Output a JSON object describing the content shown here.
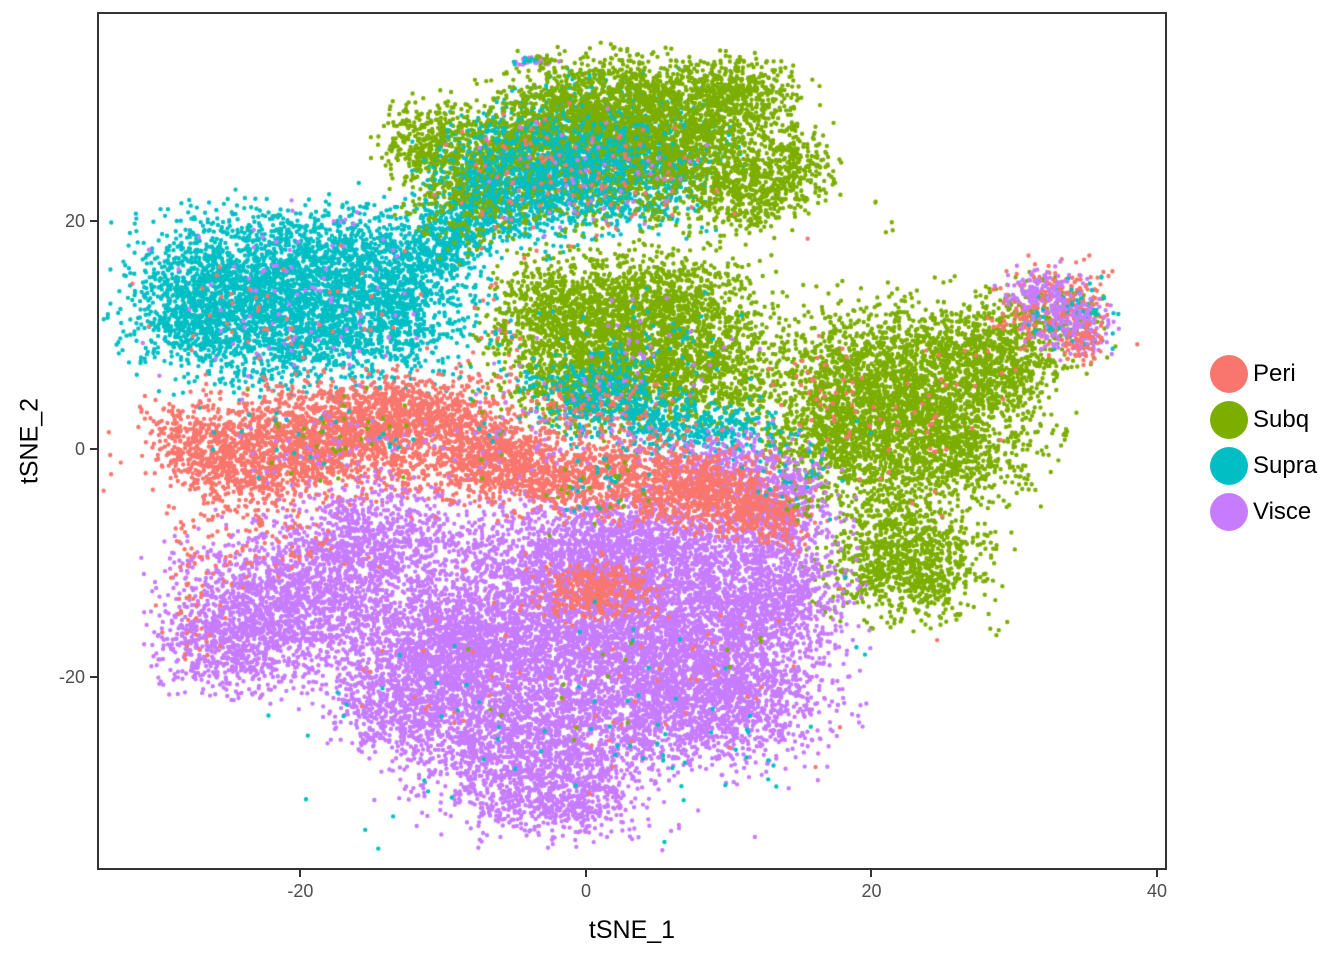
{
  "chart_data": {
    "type": "scatter",
    "title": "",
    "xlabel": "tSNE_1",
    "ylabel": "tSNE_2",
    "xlim": [
      -34.25,
      40.7
    ],
    "ylim": [
      -36.9,
      38.3
    ],
    "grid": false,
    "x_ticks": [
      {
        "value": -20,
        "label": "-20"
      },
      {
        "value": 0,
        "label": "0"
      },
      {
        "value": 20,
        "label": "20"
      },
      {
        "value": 40,
        "label": "40"
      }
    ],
    "y_ticks": [
      {
        "value": 20,
        "label": "20"
      },
      {
        "value": 0,
        "label": "0"
      },
      {
        "value": -20,
        "label": "-20"
      }
    ],
    "legend": {
      "position": "right",
      "items": [
        {
          "name": "Peri",
          "color": "#F8766D"
        },
        {
          "name": "Subq",
          "color": "#7CAE00"
        },
        {
          "name": "Supra",
          "color": "#00BFC4"
        },
        {
          "name": "Visce",
          "color": "#C77CFF"
        }
      ]
    },
    "palette": {
      "Peri": "#F8766D",
      "Subq": "#7CAE00",
      "Supra": "#00BFC4",
      "Visce": "#C77CFF"
    },
    "point_radius_px": 2.2,
    "seed": 42,
    "blob_format": [
      "series",
      "center_x",
      "center_y",
      "sd_x",
      "sd_y",
      "n_points"
    ],
    "blobs": [
      [
        "Supra",
        -24.5,
        15.5,
        3.2,
        2.6,
        850
      ],
      [
        "Supra",
        -17.5,
        16.5,
        3.2,
        2.4,
        850
      ],
      [
        "Supra",
        -21,
        10.5,
        4.2,
        2.6,
        1250
      ],
      [
        "Supra",
        -13.5,
        12,
        2.6,
        2.6,
        650
      ],
      [
        "Supra",
        -27.5,
        12,
        2.2,
        2.2,
        450
      ],
      [
        "Supra",
        -11,
        17,
        2,
        1.6,
        280
      ],
      [
        "Supra",
        -9.5,
        18.6,
        1.2,
        1.2,
        160
      ],
      [
        "Supra",
        -20,
        13,
        6.5,
        4.5,
        320
      ],
      [
        "Supra",
        -8.3,
        17.2,
        0.5,
        0.6,
        8
      ],
      [
        "Supra",
        -33,
        9.3,
        0.3,
        0.3,
        2
      ],
      [
        "Supra",
        -4,
        24,
        3.2,
        2.6,
        850
      ],
      [
        "Supra",
        0.5,
        27.5,
        3,
        2.4,
        650
      ],
      [
        "Supra",
        -7,
        21.5,
        2.2,
        1.8,
        380
      ],
      [
        "Supra",
        3,
        22.5,
        2.6,
        1.8,
        380
      ],
      [
        "Supra",
        6,
        26.5,
        2.2,
        2,
        300
      ],
      [
        "Subq",
        6.5,
        27,
        3.6,
        3.2,
        1700
      ],
      [
        "Subq",
        1.5,
        30.5,
        3,
        2,
        650
      ],
      [
        "Subq",
        -3,
        28,
        2.6,
        2.2,
        550
      ],
      [
        "Subq",
        -8.5,
        24,
        2.2,
        2.8,
        500
      ],
      [
        "Subq",
        -11.5,
        27,
        1.4,
        1.6,
        230
      ],
      [
        "Subq",
        10.5,
        31,
        2.2,
        1.6,
        420
      ],
      [
        "Subq",
        11.5,
        22.5,
        1.8,
        1.8,
        330
      ],
      [
        "Subq",
        14.8,
        24.8,
        1.3,
        1.6,
        210
      ],
      [
        "Subq",
        -2,
        25,
        4,
        3,
        450
      ],
      [
        "Subq",
        3,
        10,
        4.2,
        3.2,
        2100
      ],
      [
        "Subq",
        -2.5,
        12.5,
        1.8,
        2,
        400
      ],
      [
        "Subq",
        8,
        6,
        2.6,
        2.2,
        560
      ],
      [
        "Subq",
        0,
        5.5,
        2.2,
        1.8,
        400
      ],
      [
        "Subq",
        6,
        13.5,
        2.6,
        1.6,
        380
      ],
      [
        "Subq",
        22,
        4.5,
        4.6,
        3.8,
        3000
      ],
      [
        "Subq",
        28.5,
        7.5,
        1.8,
        1.8,
        400
      ],
      [
        "Subq",
        17.5,
        0.5,
        2,
        1.8,
        330
      ],
      [
        "Subq",
        25.5,
        -1,
        2.2,
        1.6,
        330
      ],
      [
        "Subq",
        22.5,
        -9.5,
        2.7,
        2.5,
        1050
      ],
      [
        "Subq",
        20.5,
        -4,
        1.5,
        1.5,
        80
      ],
      [
        "Supra",
        -3.5,
        24.5,
        2.8,
        2.2,
        480
      ],
      [
        "Supra",
        1.5,
        25.5,
        2,
        1.5,
        200
      ],
      [
        "Supra",
        0.5,
        4.8,
        2,
        1.5,
        280
      ],
      [
        "Supra",
        5,
        2.5,
        2.5,
        1.3,
        260
      ],
      [
        "Supra",
        9.5,
        1.5,
        2,
        1.2,
        200
      ],
      [
        "Supra",
        3,
        7,
        3.5,
        2.5,
        120
      ],
      [
        "Peri",
        -18,
        1,
        4.2,
        2.2,
        1600
      ],
      [
        "Peri",
        -12.5,
        3.5,
        2.2,
        1.6,
        520
      ],
      [
        "Peri",
        -8,
        2.5,
        1.5,
        1.5,
        150
      ],
      [
        "Peri",
        -23.5,
        -2,
        2.6,
        1.8,
        470
      ],
      [
        "Peri",
        -27,
        0.5,
        1.8,
        1.5,
        280
      ],
      [
        "Peri",
        -28.5,
        3,
        1.5,
        1.2,
        30
      ],
      [
        "Peri",
        -6.5,
        -0.5,
        2.2,
        1.6,
        420
      ],
      [
        "Peri",
        -33.5,
        -0.5,
        0.5,
        1.5,
        6
      ],
      [
        "Visce",
        -20.5,
        -13.5,
        4,
        3.2,
        1800
      ],
      [
        "Visce",
        -25.5,
        -17,
        2.2,
        2,
        480
      ],
      [
        "Visce",
        -15,
        -8,
        2.8,
        2.2,
        750
      ],
      [
        "Visce",
        0,
        -15,
        6.5,
        4.5,
        4200
      ],
      [
        "Visce",
        8,
        -21,
        4.2,
        3.2,
        2100
      ],
      [
        "Visce",
        -4,
        -26,
        4.2,
        2.8,
        1600
      ],
      [
        "Visce",
        12.5,
        -13,
        2.8,
        2.6,
        950
      ],
      [
        "Visce",
        -9,
        -18,
        3.2,
        2.6,
        1150
      ],
      [
        "Visce",
        3,
        -8.5,
        4.5,
        2.2,
        1300
      ],
      [
        "Visce",
        13.5,
        -5.5,
        2,
        2,
        420
      ],
      [
        "Visce",
        -2,
        -31,
        2.6,
        1.6,
        420
      ],
      [
        "Visce",
        10,
        -1.5,
        2.5,
        1.5,
        330
      ],
      [
        "Visce",
        -13,
        -22.5,
        2.4,
        2,
        560
      ],
      [
        "Peri",
        0,
        -2.2,
        5.5,
        1.6,
        1250
      ],
      [
        "Peri",
        8,
        -4,
        2.6,
        1.5,
        480
      ],
      [
        "Peri",
        12,
        -5.5,
        1.8,
        1.3,
        280
      ],
      [
        "Peri",
        2,
        3.5,
        2.5,
        1.5,
        90
      ],
      [
        "Peri",
        0.8,
        -12.3,
        1.9,
        1.2,
        360
      ],
      [
        "Subq",
        31.5,
        11,
        2.3,
        2,
        230
      ],
      [
        "Peri",
        33,
        12.5,
        2,
        1.8,
        250
      ],
      [
        "Supra",
        34,
        11.5,
        1.6,
        1.6,
        90
      ],
      [
        "Visce",
        31.8,
        13.8,
        1.3,
        1,
        130
      ],
      [
        "Visce",
        34,
        10.5,
        1.4,
        1.2,
        170
      ],
      [
        "Peri",
        34.5,
        9.5,
        0.9,
        0.9,
        60
      ],
      [
        "Visce",
        -20,
        13,
        5,
        3.5,
        85
      ],
      [
        "Peri",
        -20,
        11,
        4.5,
        3,
        55
      ],
      [
        "Visce",
        -17,
        0.5,
        4,
        2,
        65
      ],
      [
        "Supra",
        -18,
        0.5,
        4,
        2,
        25
      ],
      [
        "Subq",
        -18,
        1,
        3.5,
        1.8,
        30
      ],
      [
        "Peri",
        0,
        24,
        4.5,
        3,
        110
      ],
      [
        "Visce",
        1,
        24,
        4,
        2.5,
        45
      ],
      [
        "Visce",
        3,
        9,
        3.5,
        2.5,
        40
      ],
      [
        "Visce",
        0,
        1,
        3,
        2,
        50
      ],
      [
        "Peri",
        22,
        3,
        4,
        3.5,
        50
      ],
      [
        "Peri",
        17,
        5,
        1.5,
        2.5,
        30
      ],
      [
        "Supra",
        -2,
        -24,
        9,
        6,
        55
      ],
      [
        "Supra",
        9,
        -26,
        3,
        2,
        14
      ],
      [
        "Peri",
        2,
        -20,
        8,
        5,
        70
      ],
      [
        "Subq",
        0,
        -20,
        6,
        4,
        14
      ],
      [
        "Subq",
        12,
        -17,
        0.4,
        0.4,
        2
      ],
      [
        "Peri",
        -22,
        -8,
        3,
        2,
        70
      ],
      [
        "Peri",
        -27.5,
        -11,
        1.2,
        3.5,
        60
      ],
      [
        "Peri",
        -6,
        8,
        1.5,
        5,
        45
      ],
      [
        "Supra",
        -6.5,
        10,
        1.5,
        5,
        35
      ],
      [
        "Subq",
        -6,
        6,
        1.5,
        4,
        25
      ],
      [
        "Visce",
        -6,
        4,
        1,
        3,
        16
      ],
      [
        "Supra",
        1,
        -2.5,
        2,
        2,
        30
      ],
      [
        "Subq",
        1.5,
        -3.5,
        2,
        2,
        22
      ],
      [
        "Visce",
        14.5,
        -3.5,
        1.2,
        2,
        40
      ],
      [
        "Peri",
        14,
        -6.5,
        1,
        1.5,
        28
      ],
      [
        "Supra",
        15.5,
        -2,
        2,
        2,
        30
      ],
      [
        "Subq",
        15,
        -5.3,
        0.8,
        0.5,
        12
      ],
      [
        "Subq",
        20,
        21.5,
        0.3,
        0.3,
        2
      ],
      [
        "Subq",
        21,
        19,
        0.5,
        0.5,
        3
      ],
      [
        "Peri",
        16,
        18.7,
        0.3,
        0.3,
        1
      ],
      [
        "Subq",
        29,
        -15.5,
        0.8,
        0.8,
        4
      ],
      [
        "Supra",
        19.5,
        -17.5,
        0.5,
        0.5,
        2
      ],
      [
        "Visce",
        18,
        -21.5,
        1,
        1,
        6
      ],
      [
        "Visce",
        2,
        -34,
        5,
        0.8,
        12
      ],
      [
        "Visce",
        -3.6,
        34,
        0.8,
        0.25,
        22
      ],
      [
        "Subq",
        -3,
        34.1,
        0.7,
        0.25,
        16
      ],
      [
        "Supra",
        -4.1,
        33.9,
        0.5,
        0.2,
        8
      ]
    ]
  },
  "panel": {
    "background": "#ffffff",
    "border_color": "#333333",
    "tick_color": "#333333",
    "tick_label_color": "#4d4d4d",
    "axis_title_color": "#000000"
  }
}
